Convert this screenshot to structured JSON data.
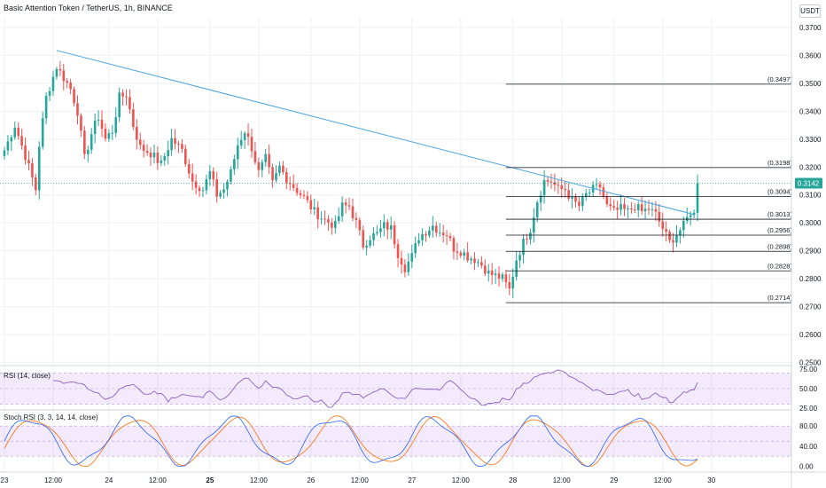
{
  "header": {
    "symbol": "Basic Attention Token / TetherUS, 1h, BINANCE",
    "currency": "USDT"
  },
  "chart_data": {
    "type": "candlestick",
    "price_ticks": [
      "0.3700",
      "0.3600",
      "0.3500",
      "0.3400",
      "0.3300",
      "0.3200",
      "0.3100",
      "0.3000",
      "0.2900",
      "0.2800",
      "0.2700",
      "0.2600",
      "0.2500"
    ],
    "price_range": [
      0.2495,
      0.3735
    ],
    "last_price": "0.3142",
    "x_labels": [
      "23",
      "12:00",
      "24",
      "12:00",
      "25",
      "12:00",
      "26",
      "12:00",
      "27",
      "12:00",
      "28",
      "12:00",
      "29",
      "12:00",
      "30"
    ],
    "x_bold": [
      "25"
    ],
    "trendline": {
      "from": {
        "bar": 15,
        "price": 0.3618
      },
      "to": {
        "bar": 198,
        "price": 0.303
      }
    },
    "levels": [
      {
        "label": "(0.3497)",
        "price": 0.3497
      },
      {
        "label": "(0.3198)",
        "price": 0.3198
      },
      {
        "label": "(0.3094)",
        "price": 0.3094
      },
      {
        "label": "(0.3013)",
        "price": 0.3013
      },
      {
        "label": "(0.2956)",
        "price": 0.2956
      },
      {
        "label": "(0.2898)",
        "price": 0.2898
      },
      {
        "label": "(0.2828)",
        "price": 0.2828
      },
      {
        "label": "(0.2714)",
        "price": 0.2714
      }
    ],
    "level_start_bar": 144,
    "anchors": [
      [
        0,
        0.326
      ],
      [
        3,
        0.335
      ],
      [
        6,
        0.324
      ],
      [
        9,
        0.312
      ],
      [
        10,
        0.328
      ],
      [
        12,
        0.345
      ],
      [
        15,
        0.356
      ],
      [
        17,
        0.352
      ],
      [
        19,
        0.348
      ],
      [
        21,
        0.34
      ],
      [
        23,
        0.323
      ],
      [
        25,
        0.332
      ],
      [
        27,
        0.338
      ],
      [
        29,
        0.33
      ],
      [
        31,
        0.333
      ],
      [
        33,
        0.345
      ],
      [
        35,
        0.346
      ],
      [
        37,
        0.335
      ],
      [
        39,
        0.327
      ],
      [
        42,
        0.325
      ],
      [
        45,
        0.321
      ],
      [
        48,
        0.33
      ],
      [
        51,
        0.326
      ],
      [
        54,
        0.315
      ],
      [
        57,
        0.312
      ],
      [
        59,
        0.318
      ],
      [
        61,
        0.31
      ],
      [
        63,
        0.312
      ],
      [
        65,
        0.318
      ],
      [
        67,
        0.328
      ],
      [
        69,
        0.333
      ],
      [
        71,
        0.327
      ],
      [
        73,
        0.318
      ],
      [
        75,
        0.323
      ],
      [
        77,
        0.314
      ],
      [
        79,
        0.32
      ],
      [
        81,
        0.316
      ],
      [
        83,
        0.313
      ],
      [
        86,
        0.309
      ],
      [
        89,
        0.304
      ],
      [
        92,
        0.301
      ],
      [
        95,
        0.299
      ],
      [
        97,
        0.306
      ],
      [
        99,
        0.306
      ],
      [
        101,
        0.3
      ],
      [
        103,
        0.292
      ],
      [
        105,
        0.295
      ],
      [
        107,
        0.296
      ],
      [
        109,
        0.299
      ],
      [
        111,
        0.298
      ],
      [
        113,
        0.289
      ],
      [
        115,
        0.284
      ],
      [
        117,
        0.288
      ],
      [
        119,
        0.295
      ],
      [
        121,
        0.297
      ],
      [
        123,
        0.299
      ],
      [
        125,
        0.297
      ],
      [
        127,
        0.296
      ],
      [
        129,
        0.291
      ],
      [
        131,
        0.29
      ],
      [
        133,
        0.288
      ],
      [
        135,
        0.287
      ],
      [
        137,
        0.285
      ],
      [
        139,
        0.282
      ],
      [
        141,
        0.281
      ],
      [
        143,
        0.28
      ],
      [
        145,
        0.276
      ],
      [
        147,
        0.287
      ],
      [
        149,
        0.293
      ],
      [
        151,
        0.298
      ],
      [
        153,
        0.308
      ],
      [
        155,
        0.315
      ],
      [
        157,
        0.315
      ],
      [
        159,
        0.312
      ],
      [
        161,
        0.312
      ],
      [
        163,
        0.308
      ],
      [
        165,
        0.306
      ],
      [
        167,
        0.31
      ],
      [
        169,
        0.312
      ],
      [
        171,
        0.313
      ],
      [
        173,
        0.306
      ],
      [
        175,
        0.304
      ],
      [
        177,
        0.305
      ],
      [
        179,
        0.304
      ],
      [
        181,
        0.306
      ],
      [
        183,
        0.304
      ],
      [
        185,
        0.305
      ],
      [
        187,
        0.303
      ],
      [
        189,
        0.298
      ],
      [
        191,
        0.293
      ],
      [
        193,
        0.296
      ],
      [
        195,
        0.299
      ],
      [
        197,
        0.304
      ],
      [
        198,
        0.303
      ],
      [
        199,
        0.3142
      ]
    ],
    "rsi": {
      "label": "RSI (14, close)",
      "ticks": [
        "75.00",
        "50.00",
        "25.00"
      ],
      "band": [
        30,
        70
      ],
      "range": [
        25,
        75
      ]
    },
    "stoch": {
      "label": "Stoch RSI (3, 3, 14, 14, close)",
      "ticks": [
        "80.00",
        "40.00",
        "0.00"
      ],
      "band": [
        20,
        80
      ],
      "range": [
        -8,
        105
      ]
    },
    "colors": {
      "up": "#26a69a",
      "down": "#ef5350",
      "trendline": "#4aa3df",
      "level": "#131722",
      "rsi": "#8e5fc4",
      "stoch_k": "#2962ff",
      "stoch_d": "#ff6d00",
      "band": "rgba(155,81,224,0.12)",
      "price_tag": "#26a69a"
    }
  }
}
